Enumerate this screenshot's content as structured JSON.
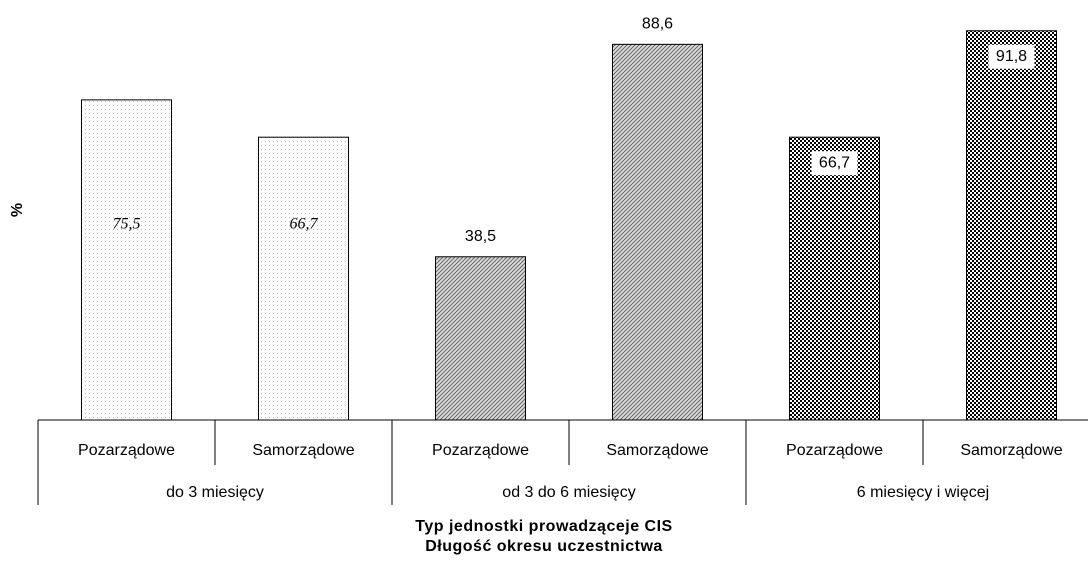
{
  "chart_data": {
    "type": "grouped_bar",
    "ylabel": "%",
    "xlabels": [
      "Typ jednostki prowadząceje CIS",
      "Długość okresu uczestnictwa"
    ],
    "ylim": [
      0,
      100
    ],
    "groups": [
      {
        "name": "do 3 miesięcy",
        "categories": [
          "Pozarządowe",
          "Samorządowe"
        ],
        "values": [
          75.5,
          66.7
        ],
        "value_labels": [
          "75,5",
          "66,7"
        ]
      },
      {
        "name": "od 3 do 6 miesięcy",
        "categories": [
          "Pozarządowe",
          "Samorządowe"
        ],
        "values": [
          38.5,
          88.6
        ],
        "value_labels": [
          "38,5",
          "88,6"
        ]
      },
      {
        "name": "6 miesięcy i więcej",
        "categories": [
          "Pozarządowe",
          "Samorządowe"
        ],
        "values": [
          66.7,
          91.8
        ],
        "value_labels": [
          "66,7",
          "91,8"
        ]
      }
    ]
  }
}
